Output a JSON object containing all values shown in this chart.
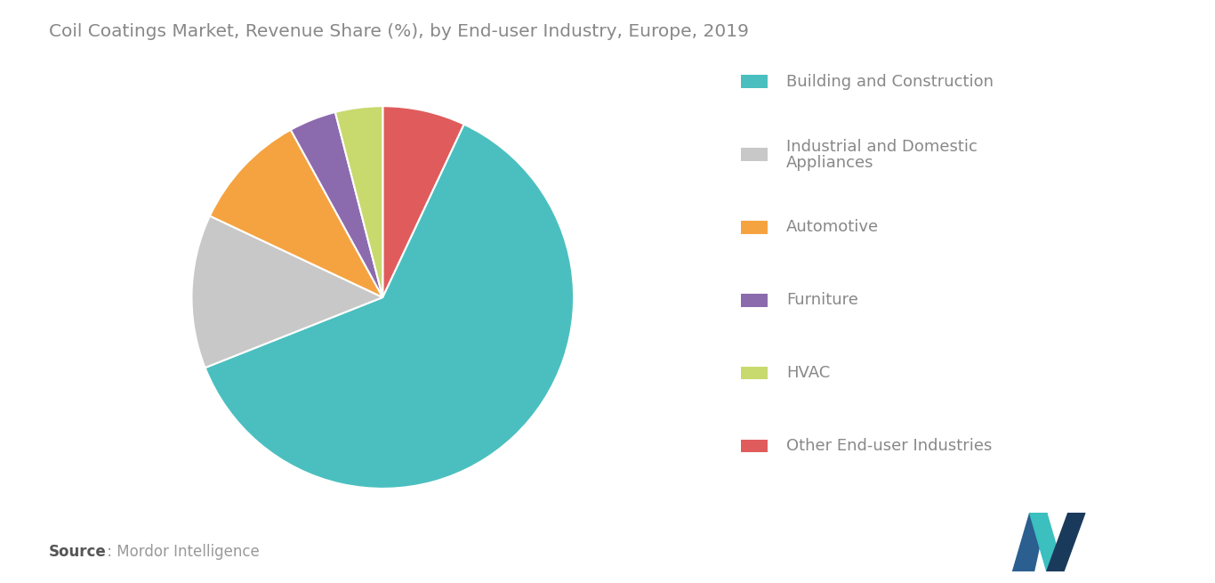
{
  "title": "Coil Coatings Market, Revenue Share (%), by End-user Industry, Europe, 2019",
  "segments": [
    {
      "label": "Building and Construction",
      "value": 62,
      "color": "#4BBFBF"
    },
    {
      "label": "Industrial and Domestic\nAppliances",
      "value": 13,
      "color": "#C8C8C8"
    },
    {
      "label": "Automotive",
      "value": 10,
      "color": "#F5A340"
    },
    {
      "label": "Furniture",
      "value": 4,
      "color": "#8B6BAE"
    },
    {
      "label": "HVAC",
      "value": 4,
      "color": "#C8D96E"
    },
    {
      "label": "Other End-user Industries",
      "value": 7,
      "color": "#E05C5C"
    }
  ],
  "legend_labels": [
    "Building and Construction",
    "Industrial and Domestic\nAppliances",
    "Automotive",
    "Furniture",
    "HVAC",
    "Other End-user Industries"
  ],
  "source_bold": "Source",
  "source_normal": " : Mordor Intelligence",
  "background_color": "#FFFFFF",
  "title_color": "#888888",
  "legend_text_color": "#888888",
  "legend_fontsize": 13,
  "title_fontsize": 14.5,
  "source_fontsize": 12
}
